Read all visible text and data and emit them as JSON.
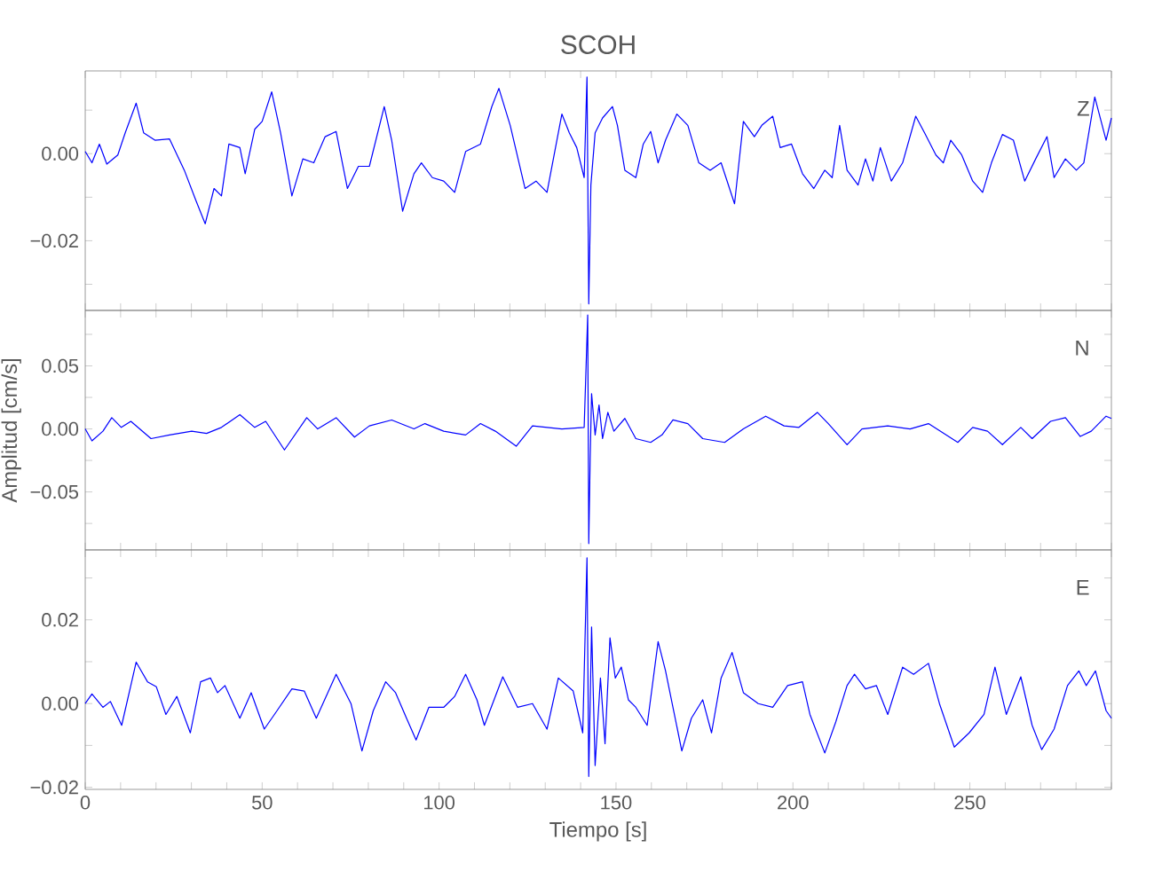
{
  "chart_data": [
    {
      "type": "line",
      "title": "SCOH",
      "annotations": [
        "Z"
      ],
      "tick_labels": "y",
      "color": "#0000ff",
      "xlim": [
        0,
        290
      ],
      "ylim": [
        -0.036,
        0.019
      ],
      "xticks": [
        0,
        {
          "value": 10,
          "label": null
        },
        {
          "value": 20,
          "label": null
        },
        {
          "value": 30,
          "label": null
        },
        {
          "value": 40,
          "label": null
        },
        50,
        {
          "value": 60,
          "label": null
        },
        {
          "value": 70,
          "label": null
        },
        {
          "value": 80,
          "label": null
        },
        {
          "value": 90,
          "label": null
        },
        100,
        {
          "value": 110,
          "label": null
        },
        {
          "value": 120,
          "label": null
        },
        {
          "value": 130,
          "label": null
        },
        {
          "value": 140,
          "label": null
        },
        150,
        {
          "value": 160,
          "label": null
        },
        {
          "value": 170,
          "label": null
        },
        {
          "value": 180,
          "label": null
        },
        {
          "value": 190,
          "label": null
        },
        200,
        {
          "value": 210,
          "label": null
        },
        {
          "value": 220,
          "label": null
        },
        {
          "value": 230,
          "label": null
        },
        {
          "value": 240,
          "label": null
        },
        250,
        {
          "value": 260,
          "label": null
        },
        {
          "value": 270,
          "label": null
        },
        {
          "value": 280,
          "label": null
        },
        {
          "value": 290,
          "label": null
        }
      ],
      "yticks": [
        {
          "value": 0.01,
          "label": null
        },
        {
          "value": 0,
          "label": "0.00"
        },
        {
          "value": -0.01,
          "label": null
        },
        {
          "value": -0.02,
          "label": "−0.02"
        },
        {
          "value": -0.03,
          "label": null
        }
      ],
      "x": [
        0,
        1.9,
        4.0,
        6.1,
        9.2,
        11.3,
        14.4,
        16.5,
        19.7,
        23.8,
        28.0,
        31.2,
        33.9,
        36.4,
        38.5,
        40.6,
        43.7,
        45.2,
        47.9,
        50.0,
        52.7,
        55.2,
        58.4,
        61.5,
        64.6,
        67.8,
        70.9,
        74.1,
        77.2,
        80.3,
        84.5,
        86.6,
        89.7,
        92.9,
        95.0,
        98.1,
        101.3,
        104.4,
        107.5,
        111.7,
        114.9,
        116.9,
        120.1,
        124.3,
        127.4,
        130.5,
        134.7,
        136.8,
        138.9,
        141.0,
        141.8,
        142.3,
        142.9,
        144.1,
        146.2,
        149.0,
        150.4,
        152.5,
        155.6,
        157.7,
        159.8,
        161.9,
        164.0,
        167.2,
        170.3,
        173.4,
        176.6,
        179.7,
        183.5,
        186.0,
        189.1,
        191.2,
        194.3,
        196.4,
        199.6,
        202.7,
        205.9,
        209.0,
        211.1,
        213.2,
        215.3,
        218.4,
        220.5,
        222.6,
        224.7,
        227.8,
        231.0,
        234.7,
        237.2,
        240.4,
        242.5,
        244.6,
        247.7,
        250.8,
        253.6,
        256.1,
        259.2,
        262.3,
        265.5,
        268.6,
        271.8,
        273.8,
        277.0,
        280.1,
        282.2,
        285.3,
        288.5,
        290
      ],
      "values": [
        0.0005,
        -0.0021,
        0.0022,
        -0.0024,
        -0.0003,
        0.0048,
        0.0116,
        0.0048,
        0.0031,
        0.0034,
        -0.0038,
        -0.0106,
        -0.0161,
        -0.008,
        -0.0097,
        0.0022,
        0.0014,
        -0.0046,
        0.0056,
        0.0074,
        0.0142,
        0.0048,
        -0.0097,
        -0.0012,
        -0.0021,
        0.0039,
        0.0051,
        -0.008,
        -0.0029,
        -0.0029,
        0.0108,
        0.0031,
        -0.0132,
        -0.0046,
        -0.0021,
        -0.0055,
        -0.0063,
        -0.0089,
        0.0005,
        0.0022,
        0.0108,
        0.015,
        0.0065,
        -0.008,
        -0.0063,
        -0.0089,
        0.0091,
        0.0048,
        0.0014,
        -0.0055,
        0.0176,
        -0.0345,
        -0.0072,
        0.0048,
        0.0082,
        0.0108,
        0.0065,
        -0.0038,
        -0.0055,
        0.0022,
        0.0051,
        -0.0021,
        0.0031,
        0.0091,
        0.0065,
        -0.0021,
        -0.0038,
        -0.0021,
        -0.0115,
        0.0074,
        0.0039,
        0.0065,
        0.0086,
        0.0014,
        0.0022,
        -0.0046,
        -0.008,
        -0.0038,
        -0.0055,
        0.0065,
        -0.0038,
        -0.0072,
        -0.0012,
        -0.0063,
        0.0014,
        -0.0063,
        -0.0021,
        0.0086,
        0.0048,
        -0.0003,
        -0.0021,
        0.0031,
        -0.0003,
        -0.0063,
        -0.0089,
        -0.0021,
        0.0044,
        0.0031,
        -0.0063,
        -0.0012,
        0.0039,
        -0.0055,
        -0.0012,
        -0.0038,
        -0.0021,
        0.013,
        0.0031,
        0.0082
      ]
    },
    {
      "type": "line",
      "ylabel": "Amplitud  [cm/s]",
      "annotations": [
        "N"
      ],
      "tick_labels": "y",
      "color": "#0000ff",
      "xlim": [
        0,
        290
      ],
      "ylim": [
        -0.096,
        0.094
      ],
      "xticks": [
        0,
        {
          "value": 10,
          "label": null
        },
        {
          "value": 20,
          "label": null
        },
        {
          "value": 30,
          "label": null
        },
        {
          "value": 40,
          "label": null
        },
        50,
        {
          "value": 60,
          "label": null
        },
        {
          "value": 70,
          "label": null
        },
        {
          "value": 80,
          "label": null
        },
        {
          "value": 90,
          "label": null
        },
        100,
        {
          "value": 110,
          "label": null
        },
        {
          "value": 120,
          "label": null
        },
        {
          "value": 130,
          "label": null
        },
        {
          "value": 140,
          "label": null
        },
        150,
        {
          "value": 160,
          "label": null
        },
        {
          "value": 170,
          "label": null
        },
        {
          "value": 180,
          "label": null
        },
        {
          "value": 190,
          "label": null
        },
        200,
        {
          "value": 210,
          "label": null
        },
        {
          "value": 220,
          "label": null
        },
        {
          "value": 230,
          "label": null
        },
        {
          "value": 240,
          "label": null
        },
        250,
        {
          "value": 260,
          "label": null
        },
        {
          "value": 270,
          "label": null
        },
        {
          "value": 280,
          "label": null
        },
        {
          "value": 290,
          "label": null
        }
      ],
      "yticks": [
        {
          "value": 0.075,
          "label": null
        },
        {
          "value": 0.05,
          "label": "0.05"
        },
        {
          "value": 0.025,
          "label": null
        },
        {
          "value": 0,
          "label": "0.00"
        },
        {
          "value": -0.025,
          "label": null
        },
        {
          "value": -0.05,
          "label": "−0.05"
        },
        {
          "value": -0.075,
          "label": null
        }
      ],
      "x": [
        0,
        1.9,
        5.0,
        7.5,
        10.2,
        12.9,
        18.6,
        23.8,
        30.1,
        34.3,
        38.5,
        43.7,
        47.9,
        51.0,
        56.3,
        62.6,
        65.7,
        70.9,
        76.1,
        80.3,
        86.6,
        92.9,
        96.0,
        101.3,
        107.5,
        111.7,
        115.9,
        121.8,
        126.4,
        134.7,
        141.0,
        142.0,
        142.3,
        142.7,
        143.1,
        144.1,
        145.2,
        146.2,
        147.7,
        149.4,
        152.5,
        155.6,
        159.8,
        163.0,
        166.1,
        170.3,
        174.5,
        180.7,
        186.0,
        192.3,
        197.5,
        201.7,
        206.9,
        210.0,
        215.3,
        219.5,
        226.8,
        233.1,
        238.3,
        246.6,
        250.8,
        255.0,
        259.2,
        264.4,
        267.6,
        272.8,
        277.0,
        281.2,
        284.3,
        288.5,
        290
      ],
      "values": [
        0,
        -0.0095,
        -0.0018,
        0.0089,
        0.0012,
        0.006,
        -0.0077,
        -0.0048,
        -0.0018,
        -0.0036,
        0.0012,
        0.0113,
        0.0012,
        0.006,
        -0.0167,
        0.0089,
        0,
        0.0089,
        -0.0065,
        0.0024,
        0.0071,
        0,
        0.0042,
        -0.0018,
        -0.0048,
        0.0042,
        -0.0018,
        -0.0137,
        0.0024,
        0,
        0.0012,
        0.0904,
        -0.091,
        -0.0226,
        0.028,
        -0.0048,
        0.019,
        -0.0077,
        0.0131,
        -0.0018,
        0.0083,
        -0.0077,
        -0.0107,
        -0.0048,
        0.0071,
        0.0042,
        -0.0077,
        -0.0107,
        0,
        0.0101,
        0.0024,
        0.0012,
        0.0131,
        0.0042,
        -0.0125,
        0,
        0.0024,
        0,
        0.0042,
        -0.0107,
        0.0012,
        -0.0018,
        -0.0125,
        0.0012,
        -0.0077,
        0.006,
        0.0089,
        -0.006,
        -0.0018,
        0.0101,
        0.0083
      ]
    },
    {
      "type": "line",
      "xlabel": "Tiempo  [s]",
      "annotations": [
        "E"
      ],
      "color": "#0000ff",
      "xlim": [
        0,
        290
      ],
      "ylim": [
        -0.0205,
        0.0367
      ],
      "xticks": [
        0,
        {
          "value": 10,
          "label": null
        },
        {
          "value": 20,
          "label": null
        },
        {
          "value": 30,
          "label": null
        },
        {
          "value": 40,
          "label": null
        },
        50,
        {
          "value": 60,
          "label": null
        },
        {
          "value": 70,
          "label": null
        },
        {
          "value": 80,
          "label": null
        },
        {
          "value": 90,
          "label": null
        },
        100,
        {
          "value": 110,
          "label": null
        },
        {
          "value": 120,
          "label": null
        },
        {
          "value": 130,
          "label": null
        },
        {
          "value": 140,
          "label": null
        },
        150,
        {
          "value": 160,
          "label": null
        },
        {
          "value": 170,
          "label": null
        },
        {
          "value": 180,
          "label": null
        },
        {
          "value": 190,
          "label": null
        },
        200,
        {
          "value": 210,
          "label": null
        },
        {
          "value": 220,
          "label": null
        },
        {
          "value": 230,
          "label": null
        },
        {
          "value": 240,
          "label": null
        },
        250,
        {
          "value": 260,
          "label": null
        },
        {
          "value": 270,
          "label": null
        },
        {
          "value": 280,
          "label": null
        },
        {
          "value": 290,
          "label": null
        }
      ],
      "yticks": [
        {
          "value": 0.03,
          "label": null
        },
        {
          "value": 0.02,
          "label": "0.02"
        },
        {
          "value": 0.01,
          "label": null
        },
        {
          "value": 0,
          "label": "0.00"
        },
        {
          "value": -0.01,
          "label": null
        },
        {
          "value": -0.02,
          "label": "−0.02"
        }
      ],
      "x": [
        0,
        1.9,
        5.0,
        7.1,
        10.3,
        14.4,
        17.6,
        20.1,
        22.8,
        25.9,
        29.7,
        32.6,
        35.4,
        37.4,
        39.5,
        43.7,
        46.9,
        50.6,
        54.2,
        58.4,
        61.9,
        65.3,
        70.9,
        75.1,
        78.2,
        81.4,
        84.9,
        87.7,
        90.8,
        93.5,
        97.1,
        101.3,
        104.4,
        107.5,
        110.7,
        112.8,
        118.0,
        122.2,
        126.4,
        130.5,
        133.7,
        137.9,
        140.6,
        141.8,
        142.3,
        143.1,
        144.1,
        145.6,
        146.9,
        148.3,
        149.8,
        151.5,
        153.5,
        155.6,
        158.8,
        161.9,
        164.0,
        168.6,
        171.3,
        174.5,
        177.0,
        179.7,
        182.8,
        186.0,
        190.2,
        194.3,
        198.5,
        202.7,
        204.8,
        209.0,
        212.1,
        215.3,
        217.4,
        220.5,
        223.6,
        226.8,
        231.0,
        234.1,
        238.3,
        241.4,
        245.6,
        249.8,
        254.0,
        257.1,
        260.3,
        264.4,
        267.6,
        270.3,
        273.8,
        277.6,
        280.8,
        282.9,
        285.5,
        288.5,
        290
      ],
      "values": [
        0,
        0.0023,
        -0.0009,
        0.0005,
        -0.0052,
        0.0099,
        0.0052,
        0.004,
        -0.0026,
        0.0017,
        -0.007,
        0.0052,
        0.0061,
        0.0026,
        0.0043,
        -0.0035,
        0.0026,
        -0.0061,
        -0.0017,
        0.0035,
        0.003,
        -0.0035,
        0.007,
        0,
        -0.0113,
        -0.0017,
        0.0052,
        0.0026,
        -0.0035,
        -0.0087,
        -0.0009,
        -0.0009,
        0.0017,
        0.007,
        0.0009,
        -0.0052,
        0.0064,
        -0.0009,
        0,
        -0.0061,
        0.0061,
        0.003,
        -0.007,
        0.0348,
        -0.0174,
        0.0183,
        -0.0148,
        0.0061,
        -0.0096,
        0.0157,
        0.0061,
        0.0087,
        0.0009,
        -0.0009,
        -0.0052,
        0.0148,
        0.0078,
        -0.0113,
        -0.0035,
        0.0009,
        -0.007,
        0.0061,
        0.0122,
        0.0026,
        0,
        -0.0009,
        0.0043,
        0.0052,
        -0.0026,
        -0.0118,
        -0.0044,
        0.0043,
        0.007,
        0.0035,
        0.0043,
        -0.0026,
        0.0087,
        0.007,
        0.0096,
        0,
        -0.0104,
        -0.007,
        -0.0026,
        0.0087,
        -0.0026,
        0.0064,
        -0.0052,
        -0.011,
        -0.0061,
        0.0043,
        0.0078,
        0.0043,
        0.0078,
        -0.0017,
        -0.0035
      ]
    }
  ]
}
